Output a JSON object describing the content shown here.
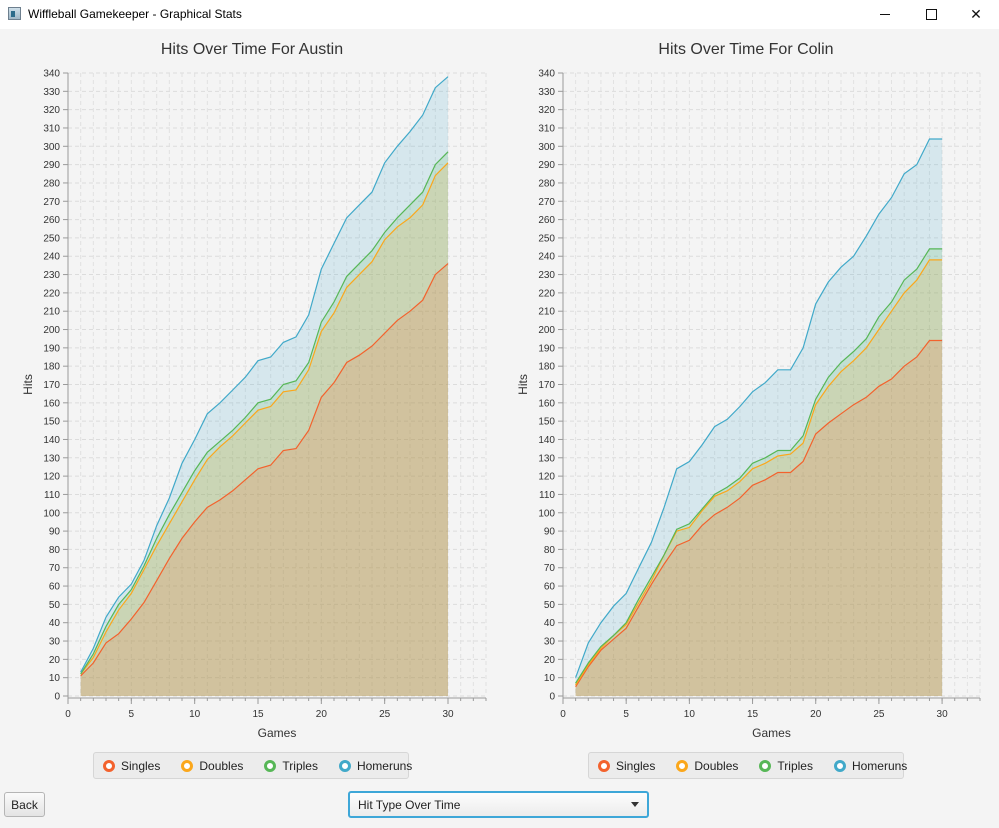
{
  "window": {
    "title": "Wiffleball Gamekeeper - Graphical Stats"
  },
  "controls": {
    "back_label": "Back",
    "view_select_value": "Hit Type Over Time"
  },
  "colors": {
    "singles": "#f3622d",
    "doubles": "#fba71b",
    "triples": "#57b757",
    "homeruns": "#41a9c9"
  },
  "chart_data": [
    {
      "type": "area",
      "stacked": true,
      "title": "Hits Over Time For Austin",
      "xlabel": "Games",
      "ylabel": "Hits",
      "xlim": [
        0,
        33
      ],
      "ylim": [
        0,
        340
      ],
      "xticks": [
        0,
        5,
        10,
        15,
        20,
        25,
        30
      ],
      "y_tick_step": 10,
      "grid": true,
      "legend": "bottom",
      "x": [
        1,
        2,
        3,
        4,
        5,
        6,
        7,
        8,
        9,
        10,
        11,
        12,
        13,
        14,
        15,
        16,
        17,
        18,
        19,
        20,
        21,
        22,
        23,
        24,
        25,
        26,
        27,
        28,
        29,
        30
      ],
      "series": [
        {
          "name": "Singles",
          "values": [
            11,
            18,
            29,
            34,
            42,
            51,
            63,
            75,
            86,
            95,
            103,
            107,
            112,
            118,
            124,
            126,
            134,
            135,
            145,
            163,
            171,
            182,
            186,
            191,
            198,
            205,
            210,
            216,
            230,
            236
          ]
        },
        {
          "name": "Doubles",
          "values": [
            12,
            21,
            35,
            47,
            56,
            69,
            82,
            94,
            106,
            118,
            129,
            136,
            142,
            149,
            156,
            158,
            166,
            167,
            178,
            199,
            209,
            223,
            230,
            237,
            249,
            256,
            261,
            268,
            284,
            291
          ]
        },
        {
          "name": "Triples",
          "values": [
            12,
            23,
            38,
            50,
            58,
            71,
            86,
            99,
            111,
            123,
            133,
            139,
            145,
            152,
            160,
            162,
            170,
            172,
            182,
            204,
            215,
            229,
            236,
            243,
            253,
            261,
            268,
            275,
            290,
            297
          ]
        },
        {
          "name": "Homeruns",
          "values": [
            13,
            26,
            43,
            54,
            61,
            74,
            93,
            108,
            127,
            140,
            154,
            160,
            167,
            174,
            183,
            185,
            193,
            196,
            208,
            233,
            247,
            261,
            268,
            275,
            291,
            300,
            308,
            317,
            332,
            338
          ]
        }
      ]
    },
    {
      "type": "area",
      "stacked": true,
      "title": "Hits Over Time For Colin",
      "xlabel": "Games",
      "ylabel": "Hits",
      "xlim": [
        0,
        33
      ],
      "ylim": [
        0,
        340
      ],
      "xticks": [
        0,
        5,
        10,
        15,
        20,
        25,
        30
      ],
      "y_tick_step": 10,
      "grid": true,
      "legend": "bottom",
      "x": [
        1,
        2,
        3,
        4,
        5,
        6,
        7,
        8,
        9,
        10,
        11,
        12,
        13,
        14,
        15,
        16,
        17,
        18,
        19,
        20,
        21,
        22,
        23,
        24,
        25,
        26,
        27,
        28,
        29,
        30
      ],
      "series": [
        {
          "name": "Singles",
          "values": [
            5,
            16,
            25,
            31,
            37,
            49,
            61,
            72,
            82,
            85,
            93,
            99,
            103,
            108,
            115,
            118,
            122,
            122,
            128,
            143,
            149,
            154,
            159,
            163,
            169,
            173,
            180,
            185,
            194,
            194
          ]
        },
        {
          "name": "Doubles",
          "values": [
            6,
            17,
            26,
            33,
            39,
            51,
            63,
            77,
            90,
            92,
            101,
            109,
            112,
            117,
            124,
            127,
            131,
            132,
            138,
            159,
            169,
            177,
            183,
            190,
            200,
            210,
            220,
            227,
            238,
            238
          ]
        },
        {
          "name": "Triples",
          "values": [
            7,
            18,
            27,
            33,
            40,
            53,
            65,
            77,
            91,
            94,
            102,
            110,
            114,
            119,
            127,
            130,
            134,
            134,
            142,
            162,
            174,
            182,
            188,
            195,
            207,
            215,
            227,
            233,
            244,
            244
          ]
        },
        {
          "name": "Homeruns",
          "values": [
            10,
            29,
            40,
            49,
            56,
            70,
            84,
            103,
            124,
            128,
            137,
            147,
            151,
            158,
            166,
            171,
            178,
            178,
            190,
            214,
            226,
            234,
            240,
            251,
            263,
            272,
            285,
            290,
            304,
            304
          ]
        }
      ]
    }
  ]
}
